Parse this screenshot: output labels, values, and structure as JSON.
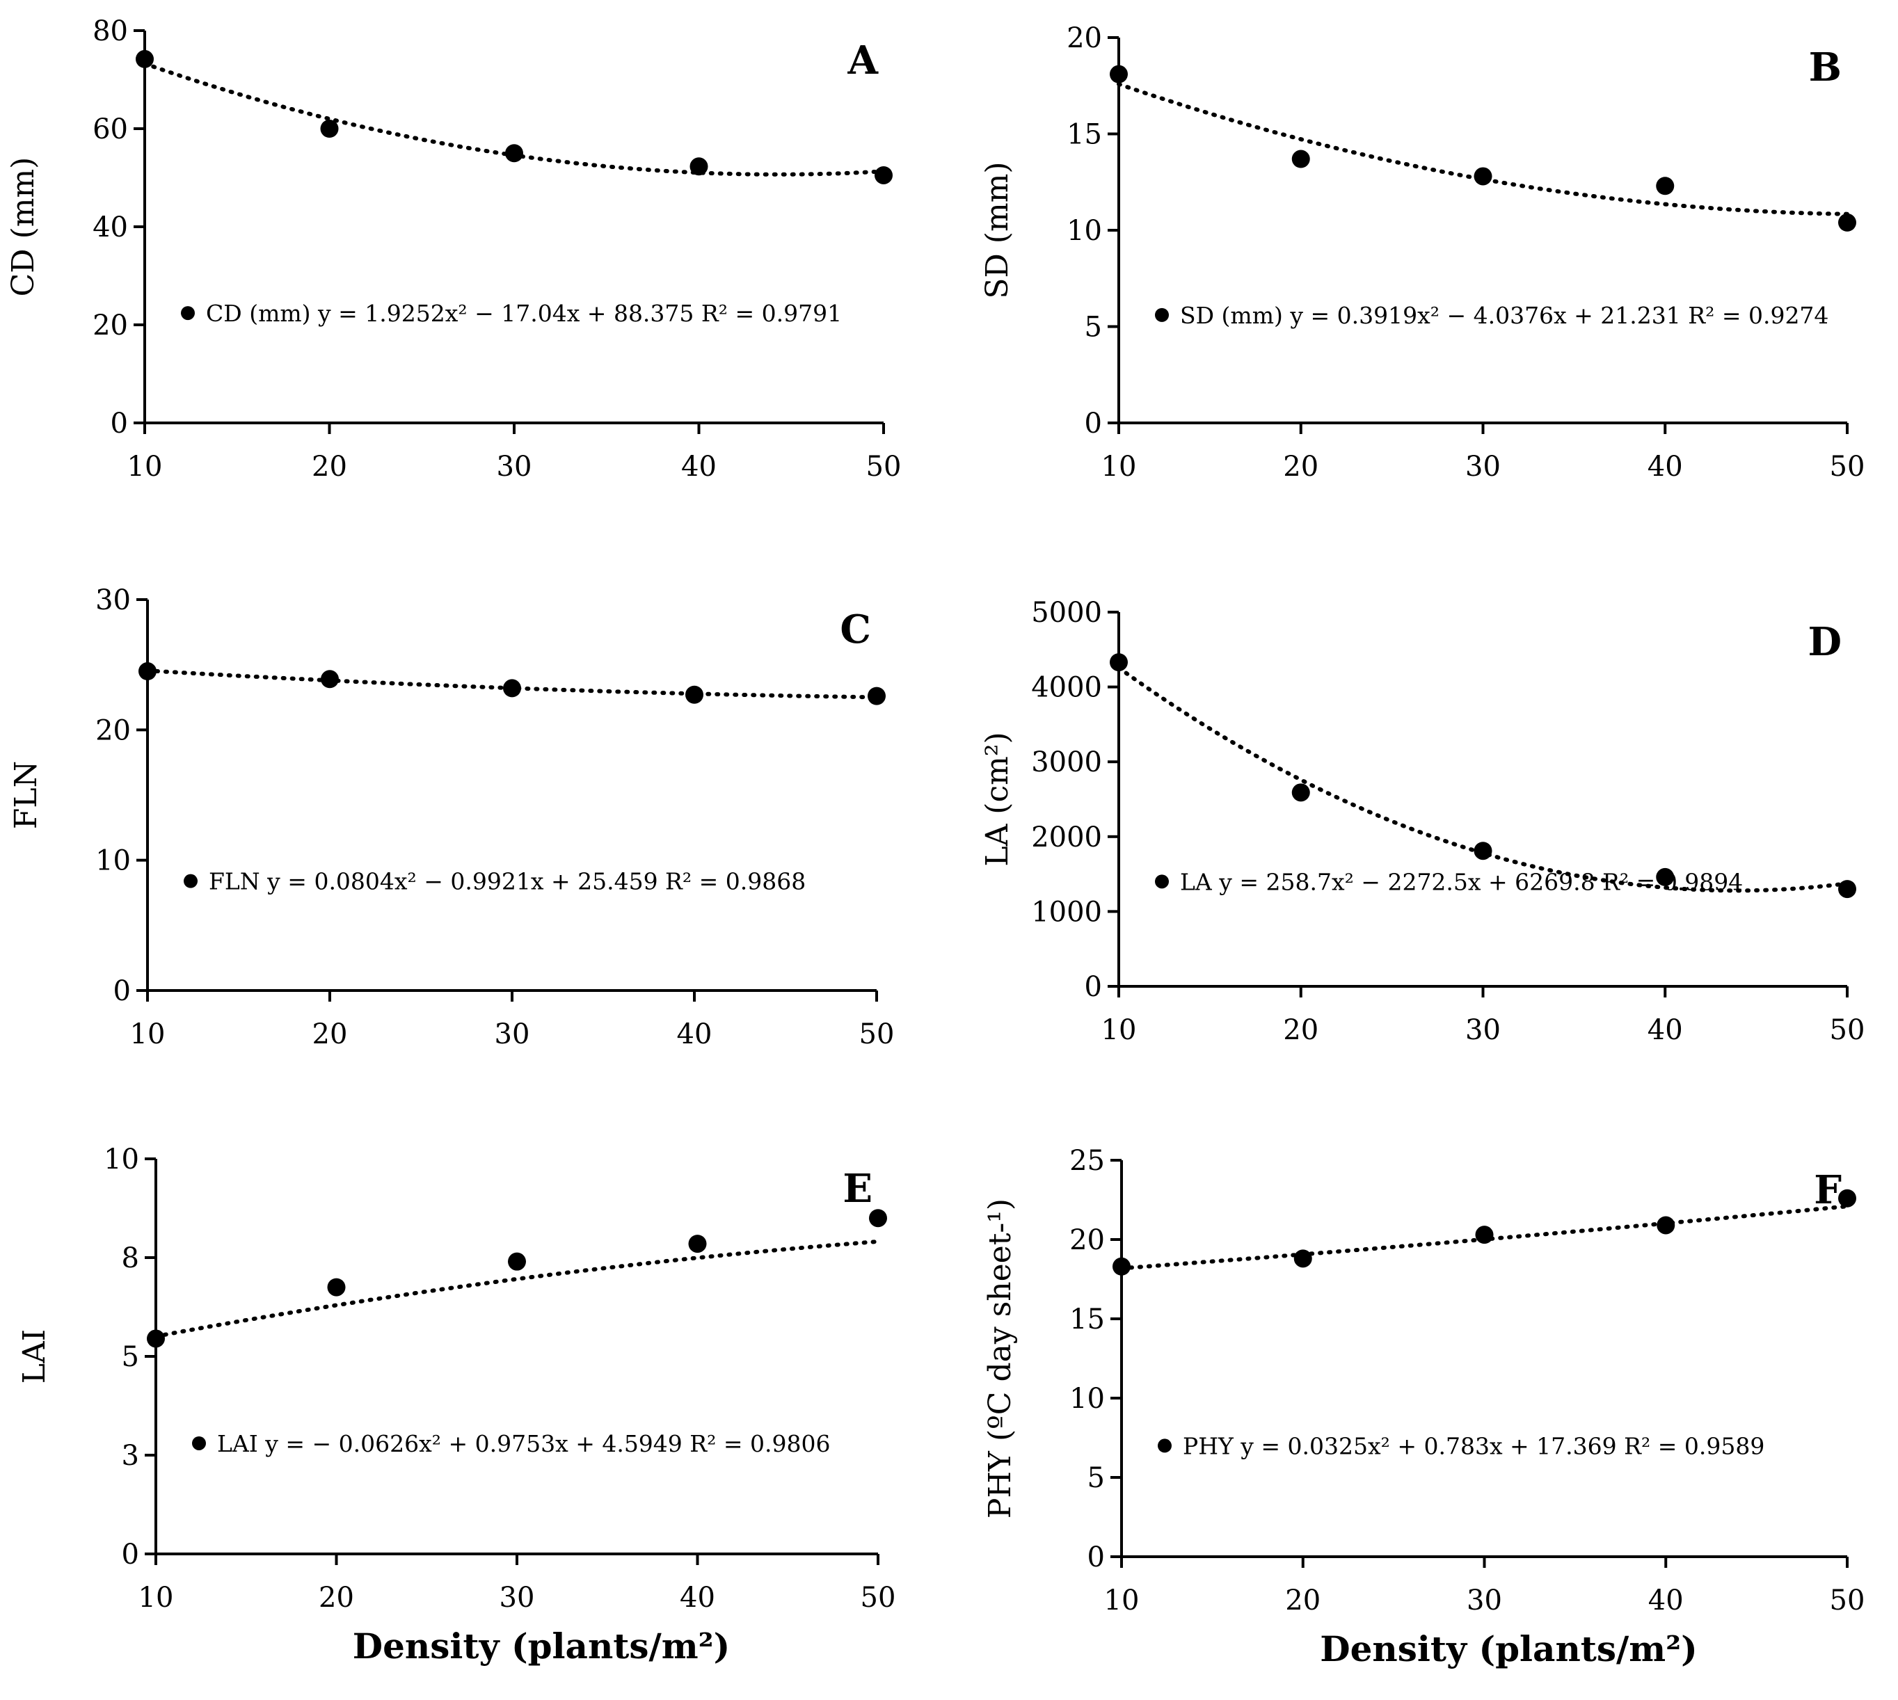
{
  "chart_data": [
    {
      "panel": "A",
      "type": "scatter",
      "ylabel": "CD (mm)",
      "xlabel": "",
      "xlim": [
        10,
        50
      ],
      "ylim": [
        0,
        80
      ],
      "xticks": [
        10,
        20,
        30,
        40,
        50
      ],
      "yticks": [
        0,
        20,
        40,
        60,
        80
      ],
      "x": [
        10,
        20,
        30,
        40,
        50
      ],
      "y": [
        74.2,
        60.0,
        55.0,
        52.3,
        50.5
      ],
      "trend": {
        "a": 1.9252,
        "b": -17.04,
        "c": 88.375,
        "style": "dotted"
      },
      "legend": "CD (mm) y = 1.9252x² − 17.04x + 88.375 R² = 0.9791"
    },
    {
      "panel": "B",
      "type": "scatter",
      "ylabel": "SD (mm)",
      "xlabel": "",
      "xlim": [
        10,
        50
      ],
      "ylim": [
        0,
        20
      ],
      "xticks": [
        10,
        20,
        30,
        40,
        50
      ],
      "yticks": [
        0,
        5,
        10,
        15,
        20
      ],
      "x": [
        10,
        20,
        30,
        40,
        50
      ],
      "y": [
        18.1,
        13.7,
        12.8,
        12.3,
        10.4
      ],
      "trend": {
        "a": 0.3919,
        "b": -4.0376,
        "c": 21.231,
        "style": "dotted"
      },
      "legend": "SD (mm) y = 0.3919x² − 4.0376x + 21.231 R² = 0.9274"
    },
    {
      "panel": "C",
      "type": "scatter",
      "ylabel": "FLN",
      "xlabel": "",
      "xlim": [
        10,
        50
      ],
      "ylim": [
        0,
        30
      ],
      "xticks": [
        10,
        20,
        30,
        40,
        50
      ],
      "yticks": [
        0,
        10,
        20,
        30
      ],
      "x": [
        10,
        20,
        30,
        40,
        50
      ],
      "y": [
        24.5,
        23.9,
        23.2,
        22.7,
        22.6
      ],
      "trend": {
        "a": 0.0804,
        "b": -0.9921,
        "c": 25.459,
        "style": "dotted"
      },
      "legend": "FLN y = 0.0804x² − 0.9921x + 25.459 R² = 0.9868"
    },
    {
      "panel": "D",
      "type": "scatter",
      "ylabel": "LA (cm²)",
      "xlabel": "",
      "xlim": [
        10,
        50
      ],
      "ylim": [
        0,
        5000
      ],
      "xticks": [
        10,
        20,
        30,
        40,
        50
      ],
      "yticks": [
        0,
        1000,
        2000,
        3000,
        4000,
        5000
      ],
      "x": [
        10,
        20,
        30,
        40,
        50
      ],
      "y": [
        4330,
        2590,
        1810,
        1460,
        1300
      ],
      "trend": {
        "a": 258.7,
        "b": -2272.5,
        "c": 6269.8,
        "style": "dotted"
      },
      "legend": "LA y = 258.7x² − 2272.5x + 6269.8 R² = 0.9894"
    },
    {
      "panel": "E",
      "type": "scatter",
      "ylabel": "LAI",
      "xlabel": "Density (plants/m²)",
      "xlim": [
        10,
        50
      ],
      "ylim": [
        0,
        10
      ],
      "xticks": [
        10,
        20,
        30,
        40,
        50
      ],
      "yticks": [
        0,
        2.5,
        5,
        7.5,
        10
      ],
      "ytick_labels": [
        "0",
        "3",
        "5",
        "8",
        "10"
      ],
      "x": [
        10,
        20,
        30,
        40,
        50
      ],
      "y": [
        5.45,
        6.75,
        7.4,
        7.85,
        8.5
      ],
      "trend": {
        "a": -0.0626,
        "b": 0.9753,
        "c": 4.5949,
        "style": "dotted"
      },
      "legend": "LAI y = − 0.0626x² + 0.9753x + 4.5949 R² = 0.9806"
    },
    {
      "panel": "F",
      "type": "scatter",
      "ylabel": "PHY (ºC day sheet-¹)",
      "xlabel": "Density (plants/m²)",
      "xlim": [
        10,
        50
      ],
      "ylim": [
        0,
        25
      ],
      "xticks": [
        10,
        20,
        30,
        40,
        50
      ],
      "yticks": [
        0,
        5,
        10,
        15,
        20,
        25
      ],
      "x": [
        10,
        20,
        30,
        40,
        50
      ],
      "y": [
        18.3,
        18.8,
        20.3,
        20.9,
        22.6
      ],
      "trend": {
        "a": 0.0325,
        "b": 0.783,
        "c": 17.369,
        "style": "dotted"
      },
      "legend": "PHY y = 0.0325x² + 0.783x + 17.369 R² = 0.9589"
    }
  ]
}
